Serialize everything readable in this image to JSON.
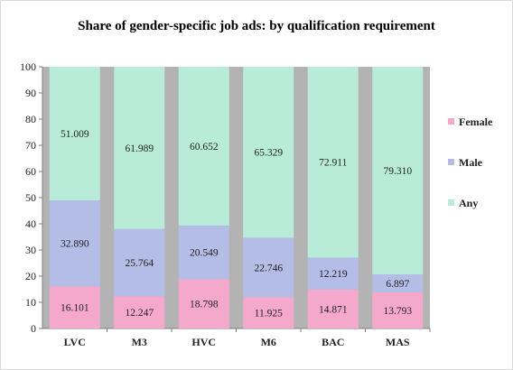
{
  "chart_data": {
    "type": "bar",
    "stacked": true,
    "title": "Share of gender-specific job ads: by qualification requirement",
    "xlabel": "",
    "ylabel": "",
    "ylim": [
      0,
      100
    ],
    "yticks": [
      0,
      10,
      20,
      30,
      40,
      50,
      60,
      70,
      80,
      90,
      100
    ],
    "categories": [
      "LVC",
      "M3",
      "HVC",
      "M6",
      "BAC",
      "MAS"
    ],
    "series": [
      {
        "name": "Female",
        "color": "#f4a9cc",
        "values": [
          16.101,
          12.247,
          18.798,
          11.925,
          14.871,
          13.793
        ],
        "labels": [
          "16.101",
          "12.247",
          "18.798",
          "11.925",
          "14.871",
          "13.793"
        ]
      },
      {
        "name": "Male",
        "color": "#b4bde6",
        "values": [
          32.89,
          25.764,
          20.549,
          22.746,
          12.219,
          6.897
        ],
        "labels": [
          "32.890",
          "25.764",
          "20.549",
          "22.746",
          "12.219",
          "6.897"
        ]
      },
      {
        "name": "Any",
        "color": "#b8ecd9",
        "values": [
          51.009,
          61.989,
          60.652,
          65.329,
          72.911,
          79.31
        ],
        "labels": [
          "51.009",
          "61.989",
          "60.652",
          "65.329",
          "72.911",
          "79.310"
        ]
      }
    ],
    "grid": false,
    "plot_background": "#b3b3b3",
    "legend_position": "right"
  }
}
